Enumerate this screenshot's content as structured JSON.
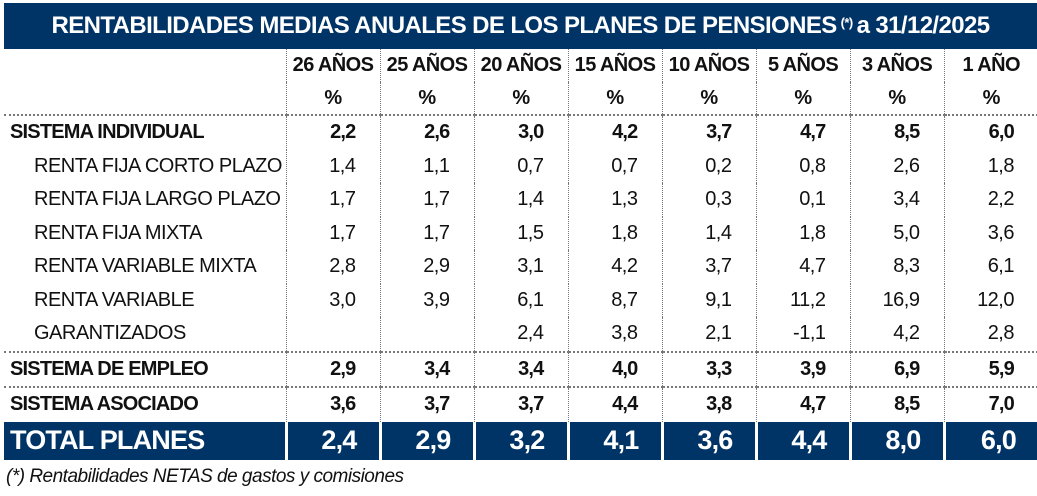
{
  "title": {
    "main": "RENTABILIDADES MEDIAS ANUALES DE LOS PLANES DE PENSIONES",
    "footnote_mark": "(*)",
    "date": "a 31/12/2025"
  },
  "columns": [
    {
      "period": "26 AÑOS",
      "unit": "%"
    },
    {
      "period": "25 AÑOS",
      "unit": "%"
    },
    {
      "period": "20 AÑOS",
      "unit": "%"
    },
    {
      "period": "15 AÑOS",
      "unit": "%"
    },
    {
      "period": "10 AÑOS",
      "unit": "%"
    },
    {
      "period": "5 AÑOS",
      "unit": "%"
    },
    {
      "period": "3 AÑOS",
      "unit": "%"
    },
    {
      "period": "1 AÑO",
      "unit": "%"
    }
  ],
  "rows": [
    {
      "label": "SISTEMA INDIVIDUAL",
      "values": [
        "2,2",
        "2,6",
        "3,0",
        "4,2",
        "3,7",
        "4,7",
        "8,5",
        "6,0"
      ]
    },
    {
      "label": "RENTA FIJA CORTO PLAZO",
      "values": [
        "1,4",
        "1,1",
        "0,7",
        "0,7",
        "0,2",
        "0,8",
        "2,6",
        "1,8"
      ]
    },
    {
      "label": "RENTA FIJA LARGO PLAZO",
      "values": [
        "1,7",
        "1,7",
        "1,4",
        "1,3",
        "0,3",
        "0,1",
        "3,4",
        "2,2"
      ]
    },
    {
      "label": "RENTA FIJA MIXTA",
      "values": [
        "1,7",
        "1,7",
        "1,5",
        "1,8",
        "1,4",
        "1,8",
        "5,0",
        "3,6"
      ]
    },
    {
      "label": "RENTA VARIABLE MIXTA",
      "values": [
        "2,8",
        "2,9",
        "3,1",
        "4,2",
        "3,7",
        "4,7",
        "8,3",
        "6,1"
      ]
    },
    {
      "label": "RENTA VARIABLE",
      "values": [
        "3,0",
        "3,9",
        "6,1",
        "8,7",
        "9,1",
        "11,2",
        "16,9",
        "12,0"
      ]
    },
    {
      "label": "GARANTIZADOS",
      "values": [
        "",
        "",
        "2,4",
        "3,8",
        "2,1",
        "-1,1",
        "4,2",
        "2,8"
      ]
    },
    {
      "label": "SISTEMA DE EMPLEO",
      "values": [
        "2,9",
        "3,4",
        "3,4",
        "4,0",
        "3,3",
        "3,9",
        "6,9",
        "5,9"
      ]
    },
    {
      "label": "SISTEMA ASOCIADO",
      "values": [
        "3,6",
        "3,7",
        "3,7",
        "4,4",
        "3,8",
        "4,7",
        "8,5",
        "7,0"
      ]
    }
  ],
  "total": {
    "label": "TOTAL PLANES",
    "values": [
      "2,4",
      "2,9",
      "3,2",
      "4,1",
      "3,6",
      "4,4",
      "8,0",
      "6,0"
    ]
  },
  "footnote": "(*) Rentabilidades NETAS de gastos y comisiones",
  "colors": {
    "header_bg": "#003366",
    "header_text": "#ffffff"
  }
}
